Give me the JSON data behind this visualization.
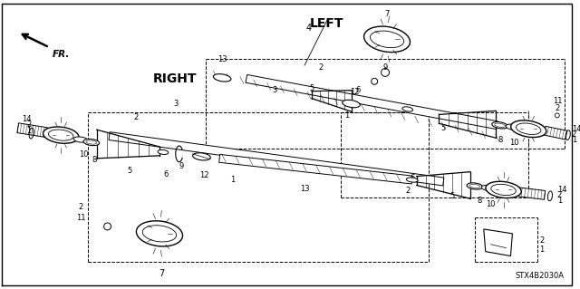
{
  "background_color": "#ffffff",
  "diagram_code": "STX4B2030A",
  "left_label": "LEFT",
  "right_label": "RIGHT",
  "fr_label": "FR.",
  "fig_width": 6.4,
  "fig_height": 3.19,
  "dpi": 100
}
